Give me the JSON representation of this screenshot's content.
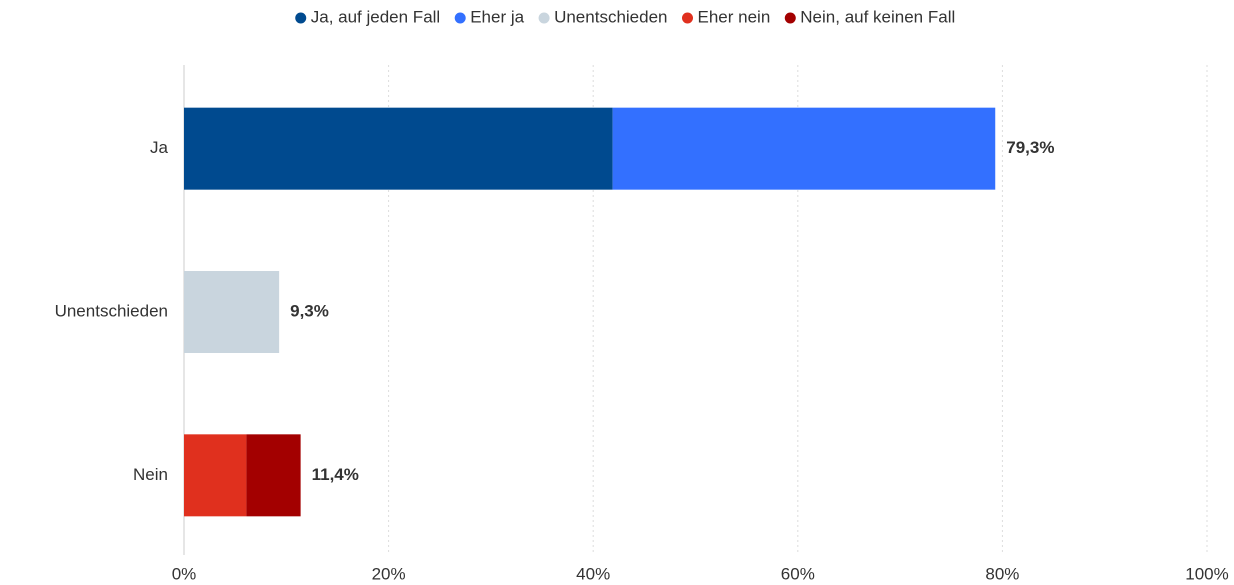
{
  "chart_data": {
    "type": "stacked_bar_horizontal",
    "categories": [
      "Ja",
      "Unentschieden",
      "Nein"
    ],
    "series": [
      {
        "name": "Ja, auf jeden Fall",
        "color": "#004a8f",
        "values": [
          41.9,
          null,
          null
        ]
      },
      {
        "name": "Eher ja",
        "color": "#3370ff",
        "values": [
          37.4,
          null,
          null
        ]
      },
      {
        "name": "Unentschieden",
        "color": "#c9d5de",
        "values": [
          null,
          9.3,
          null
        ]
      },
      {
        "name": "Eher nein",
        "color": "#e0301e",
        "values": [
          null,
          null,
          6.1
        ]
      },
      {
        "name": "Nein, auf keinen Fall",
        "color": "#a30000",
        "values": [
          null,
          null,
          5.3
        ]
      }
    ],
    "totals": [
      79.3,
      9.3,
      11.4
    ],
    "total_labels": [
      "79,3%",
      "9,3%",
      "11,4%"
    ],
    "xlim": [
      0,
      100
    ],
    "xticks": [
      {
        "value": 0,
        "label": "0%"
      },
      {
        "value": 20,
        "label": "20%"
      },
      {
        "value": 40,
        "label": "40%"
      },
      {
        "value": 60,
        "label": "60%"
      },
      {
        "value": 80,
        "label": "80%"
      },
      {
        "value": 100,
        "label": "100%"
      }
    ],
    "grid": true,
    "legend": "top"
  }
}
